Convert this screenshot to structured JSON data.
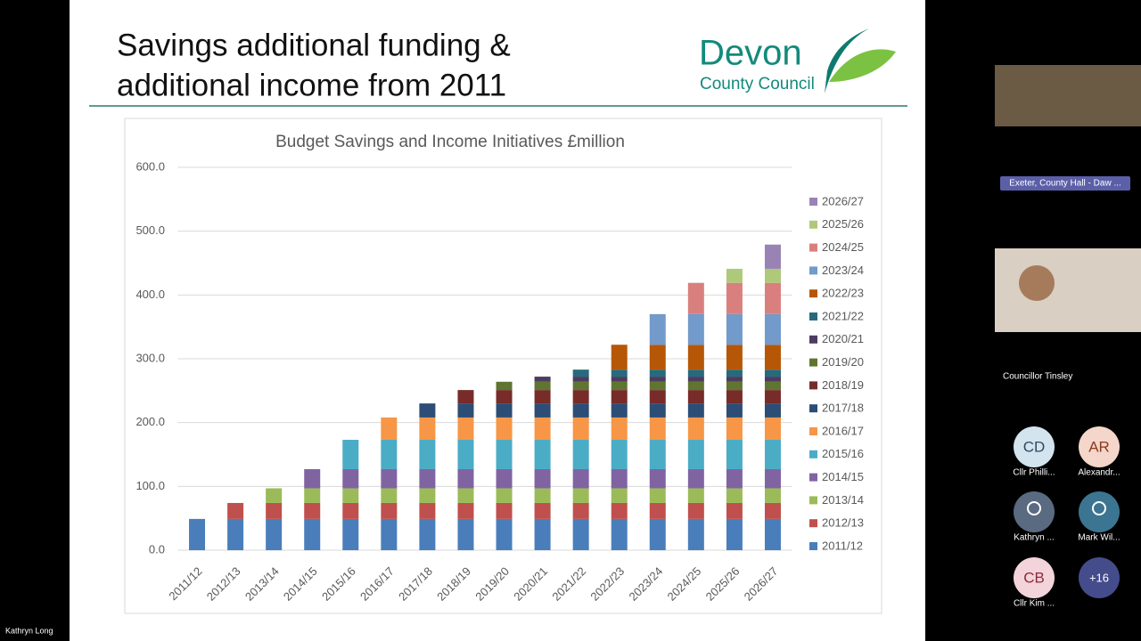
{
  "slide": {
    "title_lines": [
      "Savings additional funding &",
      "additional income from 2011"
    ],
    "logo_lines": [
      "Devon",
      "County Council"
    ]
  },
  "chart_data": {
    "type": "stacked-bar",
    "title": "Budget Savings and Income Initiatives £million",
    "categories": [
      "2011/12",
      "2012/13",
      "2013/14",
      "2014/15",
      "2015/16",
      "2016/17",
      "2017/18",
      "2018/19",
      "2019/20",
      "2020/21",
      "2021/22",
      "2022/23",
      "2023/24",
      "2024/25",
      "2025/26",
      "2026/27"
    ],
    "ylim": [
      0,
      600
    ],
    "yticks": [
      {
        "value": 0,
        "label": "0.0"
      },
      {
        "value": 100,
        "label": "100.0"
      },
      {
        "value": 200,
        "label": "200.0"
      },
      {
        "value": 300,
        "label": "300.0"
      },
      {
        "value": 400,
        "label": "400.0"
      },
      {
        "value": 500,
        "label": "500.0"
      },
      {
        "value": 600,
        "label": "600.0"
      }
    ],
    "grid": true,
    "legend": "right",
    "series": [
      {
        "name": "2011/12",
        "color": "#4a7ebb",
        "values": [
          49,
          49,
          49,
          49,
          49,
          49,
          49,
          49,
          49,
          49,
          49,
          49,
          49,
          49,
          49,
          49
        ]
      },
      {
        "name": "2012/13",
        "color": "#c0504d",
        "values": [
          null,
          25,
          25,
          25,
          25,
          25,
          25,
          25,
          25,
          25,
          25,
          25,
          25,
          25,
          25,
          25
        ]
      },
      {
        "name": "2013/14",
        "color": "#9bbb59",
        "values": [
          null,
          null,
          23,
          23,
          23,
          23,
          23,
          23,
          23,
          23,
          23,
          23,
          23,
          23,
          23,
          23
        ]
      },
      {
        "name": "2014/15",
        "color": "#8064a2",
        "values": [
          null,
          null,
          null,
          30,
          30,
          30,
          30,
          30,
          30,
          30,
          30,
          30,
          30,
          30,
          30,
          30
        ]
      },
      {
        "name": "2015/16",
        "color": "#4bacc6",
        "values": [
          null,
          null,
          null,
          null,
          46,
          46,
          46,
          46,
          46,
          46,
          46,
          46,
          46,
          46,
          46,
          46
        ]
      },
      {
        "name": "2016/17",
        "color": "#f79646",
        "values": [
          null,
          null,
          null,
          null,
          null,
          35,
          35,
          35,
          35,
          35,
          35,
          35,
          35,
          35,
          35,
          35
        ]
      },
      {
        "name": "2017/18",
        "color": "#2c4d75",
        "values": [
          null,
          null,
          null,
          null,
          null,
          null,
          22,
          22,
          22,
          22,
          22,
          22,
          22,
          22,
          22,
          22
        ]
      },
      {
        "name": "2018/19",
        "color": "#772c2a",
        "values": [
          null,
          null,
          null,
          null,
          null,
          null,
          null,
          21,
          21,
          21,
          21,
          21,
          21,
          21,
          21,
          21
        ]
      },
      {
        "name": "2019/20",
        "color": "#5f7530",
        "values": [
          null,
          null,
          null,
          null,
          null,
          null,
          null,
          null,
          13,
          13,
          13,
          13,
          13,
          13,
          13,
          13
        ]
      },
      {
        "name": "2020/21",
        "color": "#4d3b62",
        "values": [
          null,
          null,
          null,
          null,
          null,
          null,
          null,
          null,
          null,
          8,
          8,
          8,
          8,
          8,
          8,
          8
        ]
      },
      {
        "name": "2021/22",
        "color": "#276a7c",
        "values": [
          null,
          null,
          null,
          null,
          null,
          null,
          null,
          null,
          null,
          null,
          11,
          11,
          11,
          11,
          11,
          11
        ]
      },
      {
        "name": "2022/23",
        "color": "#b65708",
        "values": [
          null,
          null,
          null,
          null,
          null,
          null,
          null,
          null,
          null,
          null,
          null,
          39,
          39,
          39,
          39,
          39
        ]
      },
      {
        "name": "2023/24",
        "color": "#729aca",
        "values": [
          null,
          null,
          null,
          null,
          null,
          null,
          null,
          null,
          null,
          null,
          null,
          null,
          48,
          48,
          48,
          48
        ]
      },
      {
        "name": "2024/25",
        "color": "#d9807e",
        "values": [
          null,
          null,
          null,
          null,
          null,
          null,
          null,
          null,
          null,
          null,
          null,
          null,
          null,
          49,
          49,
          49
        ]
      },
      {
        "name": "2025/26",
        "color": "#afc97a",
        "values": [
          null,
          null,
          null,
          null,
          null,
          null,
          null,
          null,
          null,
          null,
          null,
          null,
          null,
          null,
          22,
          22
        ]
      },
      {
        "name": "2026/27",
        "color": "#9983b5",
        "values": [
          null,
          null,
          null,
          null,
          null,
          null,
          null,
          null,
          null,
          null,
          null,
          null,
          null,
          null,
          null,
          38
        ]
      }
    ]
  },
  "meeting": {
    "room_label": "Exeter, County Hall - Daw ...",
    "speaker_label": "Councillor Tinsley",
    "presenter": "Kathryn Long",
    "participants": [
      {
        "initials": "CD",
        "name": "Cllr Philli..."
      },
      {
        "initials": "AR",
        "name": "Alexandr..."
      },
      {
        "name": "Kathryn ..."
      },
      {
        "name": "Mark Wil..."
      },
      {
        "initials": "CB",
        "name": "Cllr Kim ..."
      }
    ],
    "more": "+16"
  }
}
